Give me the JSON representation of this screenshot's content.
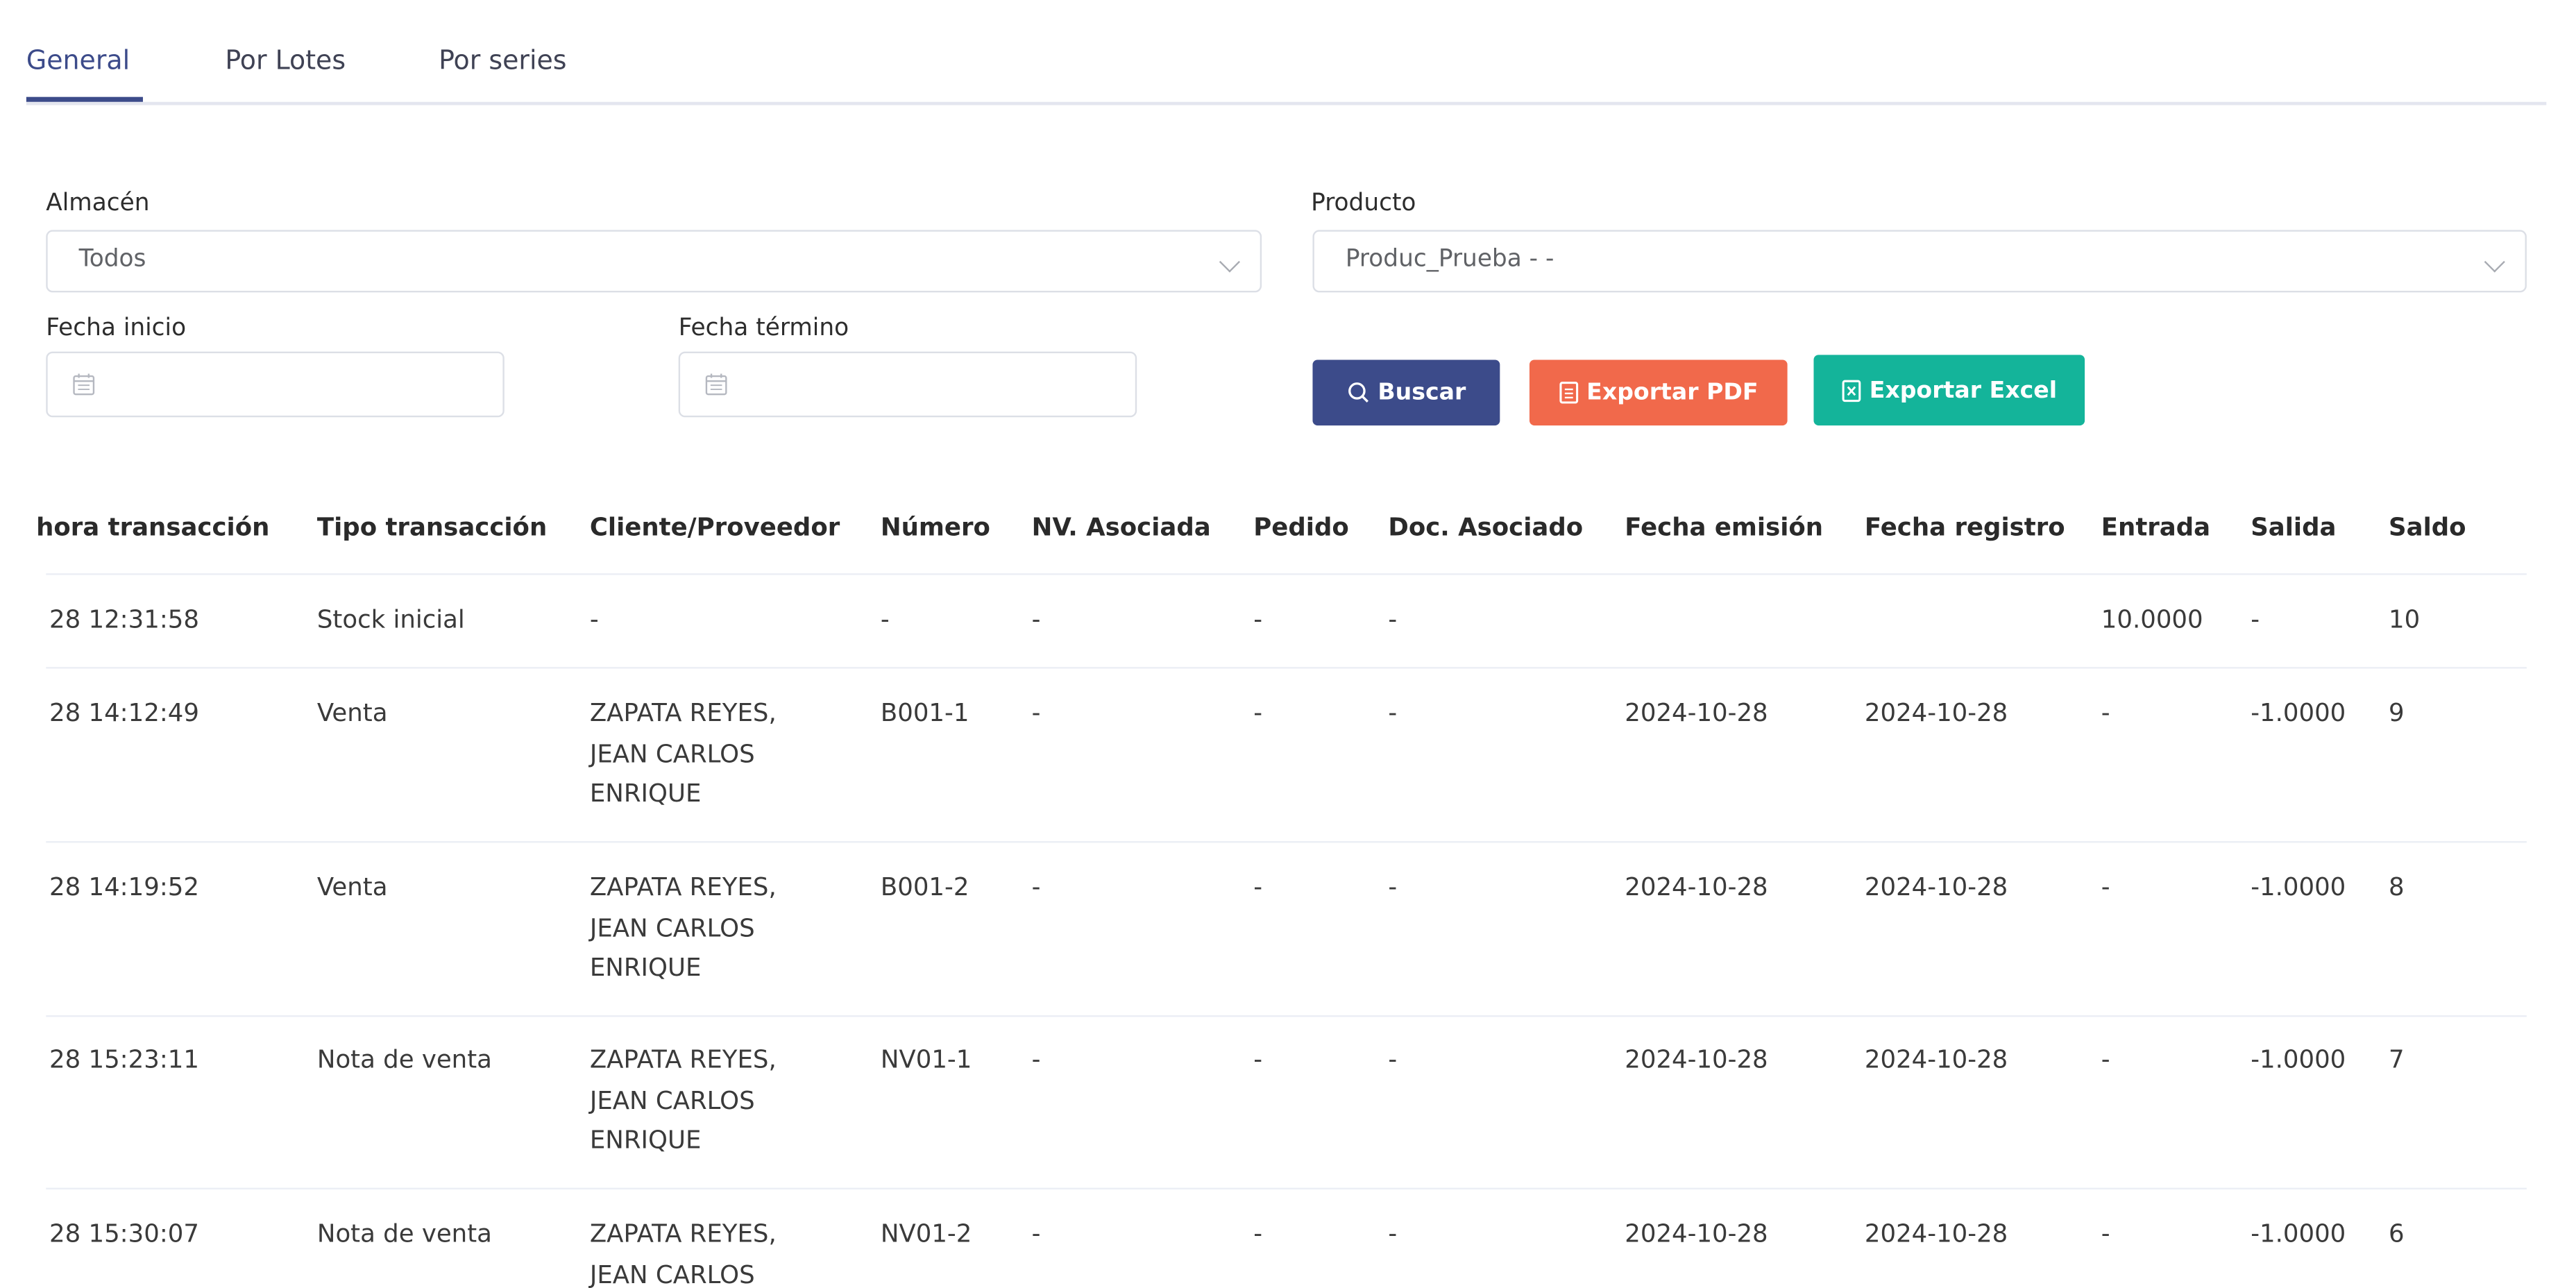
{
  "tabs": [
    {
      "label": "General",
      "active": true
    },
    {
      "label": "Por Lotes",
      "active": false
    },
    {
      "label": "Por series",
      "active": false
    }
  ],
  "filters": {
    "almacen_label": "Almacén",
    "almacen_value": "Todos",
    "producto_label": "Producto",
    "producto_value": "Produc_Prueba  -  -",
    "fecha_inicio_label": "Fecha inicio",
    "fecha_inicio_value": "",
    "fecha_termino_label": "Fecha término",
    "fecha_termino_value": ""
  },
  "buttons": {
    "buscar": "Buscar",
    "pdf": "Exportar PDF",
    "excel": "Exportar Excel"
  },
  "colors": {
    "accent": "#3c4b8a",
    "pdf": "#f1694b",
    "excel": "#14b49a"
  },
  "table": {
    "headers": [
      "hora transacción",
      "Tipo transacción",
      "Cliente/Proveedor",
      "Número",
      "NV. Asociada",
      "Pedido",
      "Doc. Asociado",
      "Fecha emisión",
      "Fecha registro",
      "Entrada",
      "Salida",
      "Saldo"
    ],
    "rows": [
      [
        "28 12:31:58",
        "Stock inicial",
        "-",
        "-",
        "-",
        "-",
        "-",
        "",
        "",
        "10.0000",
        "-",
        "10"
      ],
      [
        "28 14:12:49",
        "Venta",
        "ZAPATA REYES,\nJEAN CARLOS\nENRIQUE",
        "B001-1",
        "-",
        "-",
        "-",
        "2024-10-28",
        "2024-10-28",
        "-",
        "-1.0000",
        "9"
      ],
      [
        "28 14:19:52",
        "Venta",
        "ZAPATA REYES,\nJEAN CARLOS\nENRIQUE",
        "B001-2",
        "-",
        "-",
        "-",
        "2024-10-28",
        "2024-10-28",
        "-",
        "-1.0000",
        "8"
      ],
      [
        "28 15:23:11",
        "Nota de venta",
        "ZAPATA REYES,\nJEAN CARLOS\nENRIQUE",
        "NV01-1",
        "-",
        "-",
        "-",
        "2024-10-28",
        "2024-10-28",
        "-",
        "-1.0000",
        "7"
      ],
      [
        "28 15:30:07",
        "Nota de venta",
        "ZAPATA REYES,\nJEAN CARLOS",
        "NV01-2",
        "-",
        "-",
        "-",
        "2024-10-28",
        "2024-10-28",
        "-",
        "-1.0000",
        "6"
      ]
    ]
  }
}
